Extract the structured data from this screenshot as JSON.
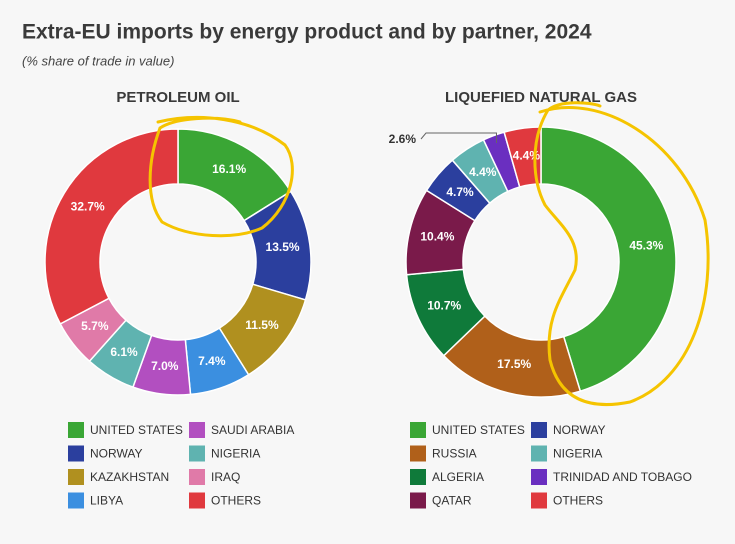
{
  "title": "Extra-EU imports by energy product and by partner, 2024",
  "subtitle": "(% share of trade in value)",
  "chart_data": [
    {
      "type": "donut",
      "title": "PETROLEUM OIL",
      "categories": [
        "UNITED STATES",
        "NORWAY",
        "KAZAKHSTAN",
        "LIBYA",
        "SAUDI ARABIA",
        "NIGERIA",
        "IRAQ",
        "OTHERS"
      ],
      "values": [
        16.1,
        13.5,
        11.5,
        7.4,
        7.0,
        6.1,
        5.7,
        32.7
      ],
      "value_labels": [
        "16.1%",
        "13.5%",
        "11.5%",
        "7.4%",
        "7.0%",
        "6.1%",
        "5.7%",
        "32.7%"
      ],
      "colors": [
        "#3aa635",
        "#2b3f9e",
        "#b0901f",
        "#3b8fe0",
        "#b24fc0",
        "#5fb3b0",
        "#e07aa8",
        "#e0393e"
      ]
    },
    {
      "type": "donut",
      "title": "LIQUEFIED NATURAL GAS",
      "categories": [
        "UNITED STATES",
        "RUSSIA",
        "ALGERIA",
        "QATAR",
        "NORWAY",
        "NIGERIA",
        "TRINIDAD AND TOBAGO",
        "OTHERS"
      ],
      "values": [
        45.3,
        17.5,
        10.7,
        10.4,
        4.7,
        4.4,
        2.6,
        4.4
      ],
      "value_labels": [
        "45.3%",
        "17.5%",
        "10.7%",
        "10.4%",
        "4.7%",
        "4.4%",
        "2.6%",
        "4.4%"
      ],
      "colors": [
        "#3aa635",
        "#b0601a",
        "#0f7a3a",
        "#7a1a4a",
        "#2b3f9e",
        "#5fb3b0",
        "#6a2fc0",
        "#e0393e"
      ]
    }
  ]
}
